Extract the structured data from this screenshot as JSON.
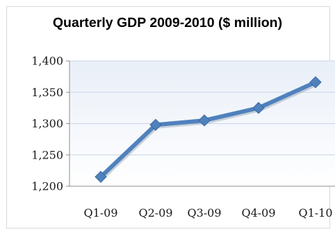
{
  "chart_data": {
    "type": "line",
    "title": "Quarterly GDP 2009-2010 ($ million)",
    "xlabel": "",
    "ylabel": "",
    "categories": [
      "Q1-09",
      "Q2-09",
      "Q3-09",
      "Q4-09",
      "Q1-10"
    ],
    "series": [
      {
        "values": [
          1215,
          1298,
          1305,
          1325,
          1366
        ]
      }
    ],
    "ylim": [
      1200,
      1400
    ],
    "yticks": [
      1200,
      1250,
      1300,
      1350,
      1400
    ],
    "ytick_labels": [
      "1,200",
      "1,250",
      "1,300",
      "1,350",
      "1,400"
    ],
    "grid": true,
    "legend": "none",
    "colors": {
      "line": "#4f81bd",
      "marker": "#4f81bd",
      "plot_background_top": "#e9eff8",
      "plot_background_bottom": "#ffffff",
      "grid": "#ffffff"
    }
  }
}
